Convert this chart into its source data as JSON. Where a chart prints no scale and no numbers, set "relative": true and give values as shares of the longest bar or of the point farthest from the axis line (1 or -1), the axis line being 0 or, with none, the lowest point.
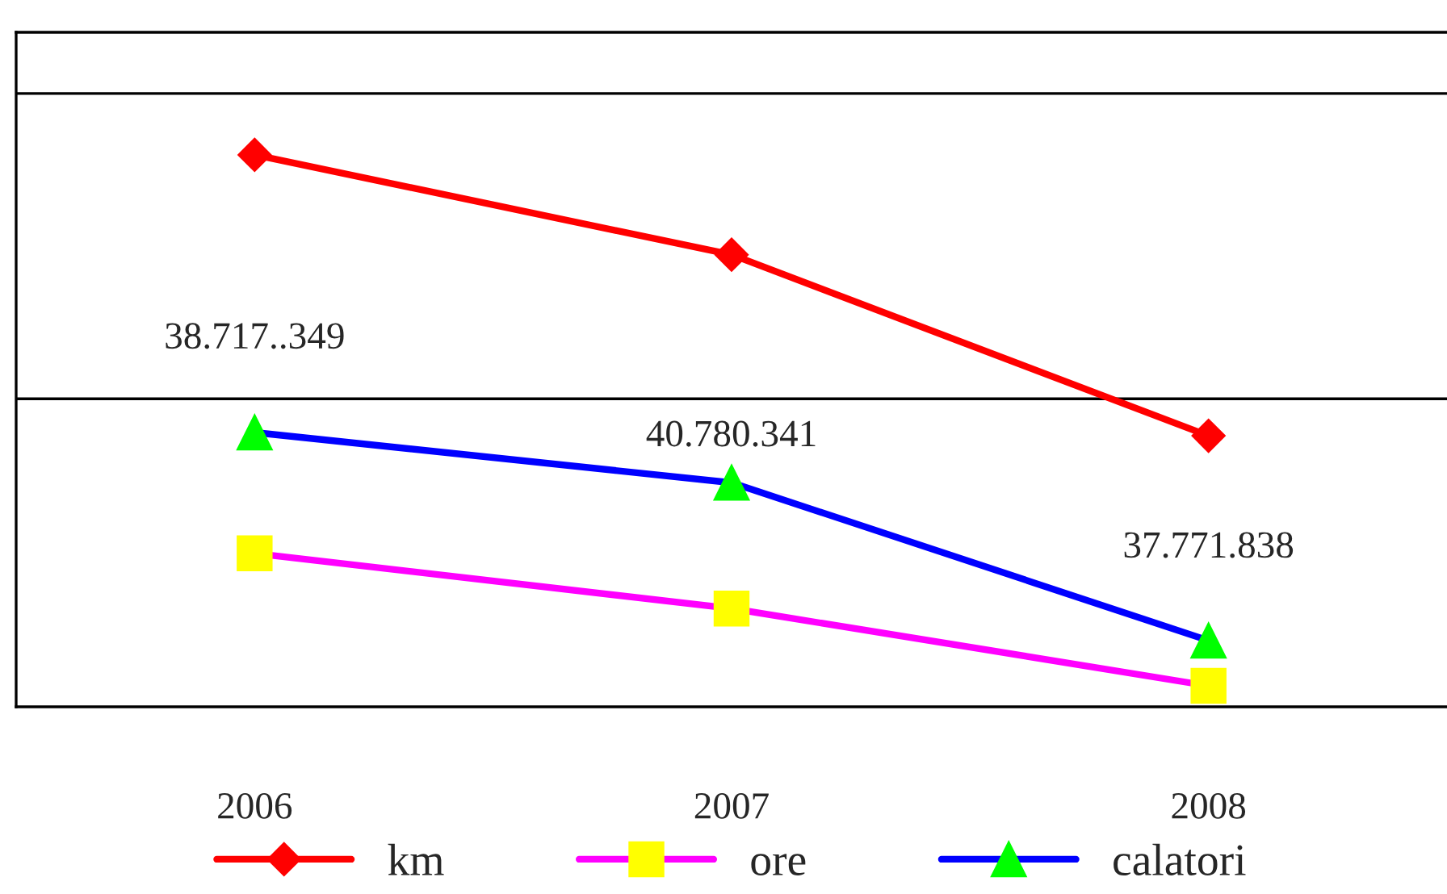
{
  "chart_data": {
    "type": "line",
    "relative": true,
    "categories": [
      "2006",
      "2007",
      "2008"
    ],
    "series": [
      {
        "name": "km",
        "color": "#ff0000",
        "marker": "diamond",
        "values": [
          1,
          0.819,
          0.491
        ]
      },
      {
        "name": "ore",
        "color": "#ff00ff",
        "marker": "square",
        "values": [
          0.278,
          0.178,
          0.038
        ]
      },
      {
        "name": "calatori",
        "color": "#0000ff",
        "marker": "triangle",
        "values": [
          0.497,
          0.406,
          0.12
        ]
      }
    ],
    "annotations": [
      "38.717..349",
      "40.780.341",
      "37.771.838"
    ],
    "ref_lines": [
      {
        "axis": "y",
        "value": 0.558,
        "color": "#000000"
      },
      {
        "axis": "y",
        "value": 1.111,
        "color": "#000000"
      }
    ],
    "legend": "bottom"
  }
}
